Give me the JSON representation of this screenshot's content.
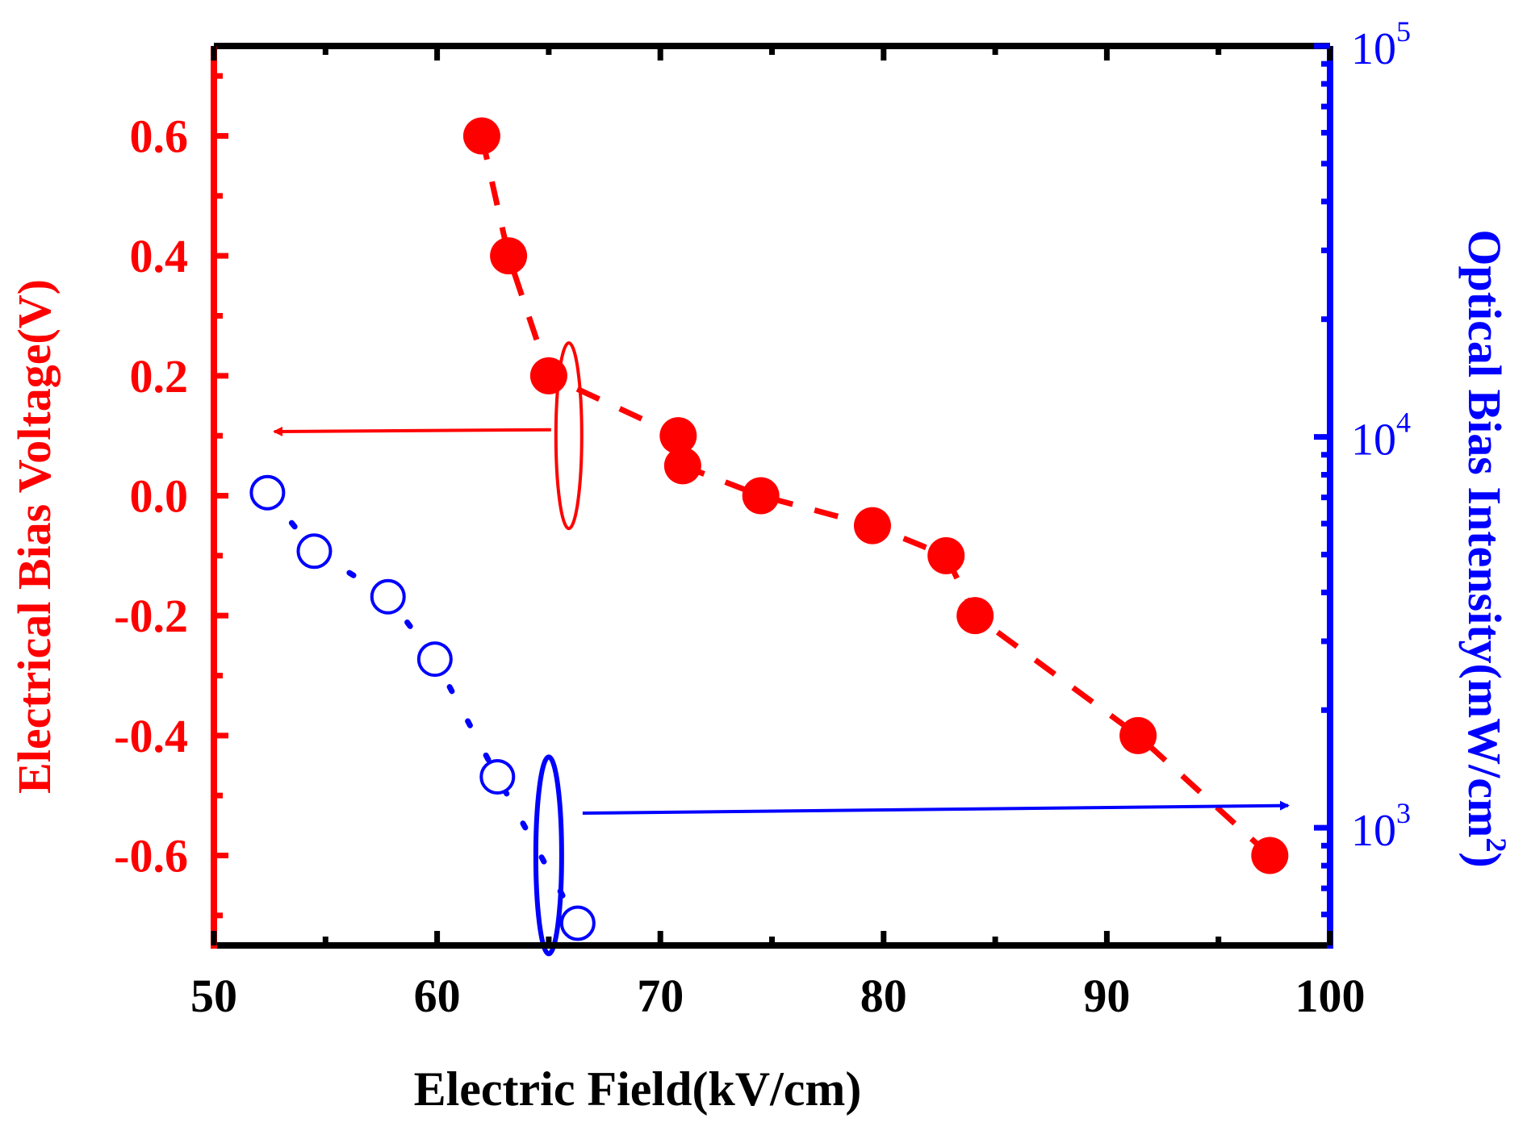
{
  "chart_data": {
    "type": "scatter",
    "xlabel": "Electric Field(kV/cm)",
    "ylabel_left": "Electrical Bias Voltage(V)",
    "ylabel_right": "Optical Bias Intensity(mW/cm2)",
    "ylabel_right_parts": {
      "base": "Optical Bias Intensity(mW/cm",
      "sup": "2",
      "close": ")"
    },
    "xlim": [
      50,
      100
    ],
    "ylim_left": [
      -0.75,
      0.75
    ],
    "ylim_right_log10": [
      2.699,
      5.0
    ],
    "x_ticks": [
      {
        "value": 50,
        "label": "50"
      },
      {
        "value": 60,
        "label": "60"
      },
      {
        "value": 70,
        "label": "70"
      },
      {
        "value": 80,
        "label": "80"
      },
      {
        "value": 90,
        "label": "90"
      },
      {
        "value": 100,
        "label": "100"
      }
    ],
    "y_left_ticks": [
      {
        "value": 0.6,
        "label": "0.6"
      },
      {
        "value": 0.4,
        "label": "0.4"
      },
      {
        "value": 0.2,
        "label": "0.2"
      },
      {
        "value": 0.0,
        "label": "0.0"
      },
      {
        "value": -0.2,
        "label": "-0.2"
      },
      {
        "value": -0.4,
        "label": "-0.4"
      },
      {
        "value": -0.6,
        "label": "-0.6"
      }
    ],
    "y_right_ticks": [
      {
        "value": 1000,
        "base": "10",
        "exp": "3"
      },
      {
        "value": 10000,
        "base": "10",
        "exp": "4"
      },
      {
        "value": 100000,
        "base": "10",
        "exp": "5"
      }
    ],
    "series": [
      {
        "name": "Electrical Bias Voltage",
        "axis": "left",
        "color": "#ff0000",
        "marker": "filled-circle",
        "line": "dashed",
        "x": [
          62.0,
          63.2,
          65.0,
          70.8,
          71.0,
          74.5,
          79.5,
          82.8,
          84.1,
          91.4,
          97.3
        ],
        "y": [
          0.6,
          0.4,
          0.2,
          0.1,
          0.05,
          0.0,
          -0.05,
          -0.1,
          -0.2,
          -0.4,
          -0.6
        ]
      },
      {
        "name": "Optical Bias Intensity",
        "axis": "right",
        "color": "#0000ff",
        "marker": "open-circle",
        "line": "dotted",
        "x": [
          52.4,
          54.5,
          57.8,
          59.9,
          62.7,
          66.3
        ],
        "y": [
          7200,
          5100,
          3900,
          2700,
          1350,
          570
        ]
      }
    ],
    "colors": {
      "left_axis": "#ff0000",
      "right_axis": "#0000ff",
      "frame": "#000000"
    }
  }
}
